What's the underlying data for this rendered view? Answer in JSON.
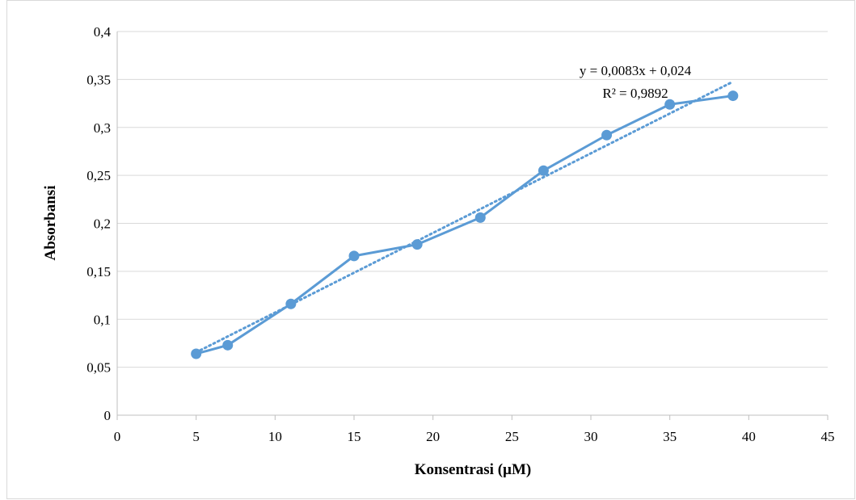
{
  "chart_data": {
    "type": "scatter",
    "xlabel": "Konsentrasi (µM)",
    "ylabel": "Absorbansi",
    "xlim": [
      0,
      45
    ],
    "ylim": [
      0,
      0.4
    ],
    "x_ticks": [
      "0",
      "5",
      "10",
      "15",
      "20",
      "25",
      "30",
      "35",
      "40",
      "45"
    ],
    "y_ticks": [
      "0",
      "0,05",
      "0,1",
      "0,15",
      "0,2",
      "0,25",
      "0,3",
      "0,35",
      "0,4"
    ],
    "grid": "horizontal",
    "series": [
      {
        "x": [
          5,
          7,
          11,
          15,
          19,
          23,
          27,
          31,
          35,
          39
        ],
        "y": [
          0.064,
          0.073,
          0.116,
          0.166,
          0.178,
          0.206,
          0.255,
          0.292,
          0.324,
          0.333
        ],
        "style": "line-with-markers",
        "color": "#5b9bd5"
      }
    ],
    "trendline": {
      "type": "linear",
      "style": "dotted",
      "color": "#5b9bd5",
      "slope": 0.0083,
      "intercept": 0.024,
      "x_range": [
        5,
        39
      ],
      "equation_label": "y = 0,0083x + 0,024",
      "r2_label": "R² = 0,9892"
    },
    "colors": {
      "gridline": "#d9d9d9",
      "axis": "#bfbfbf",
      "frame": "#d9d9d9"
    }
  }
}
